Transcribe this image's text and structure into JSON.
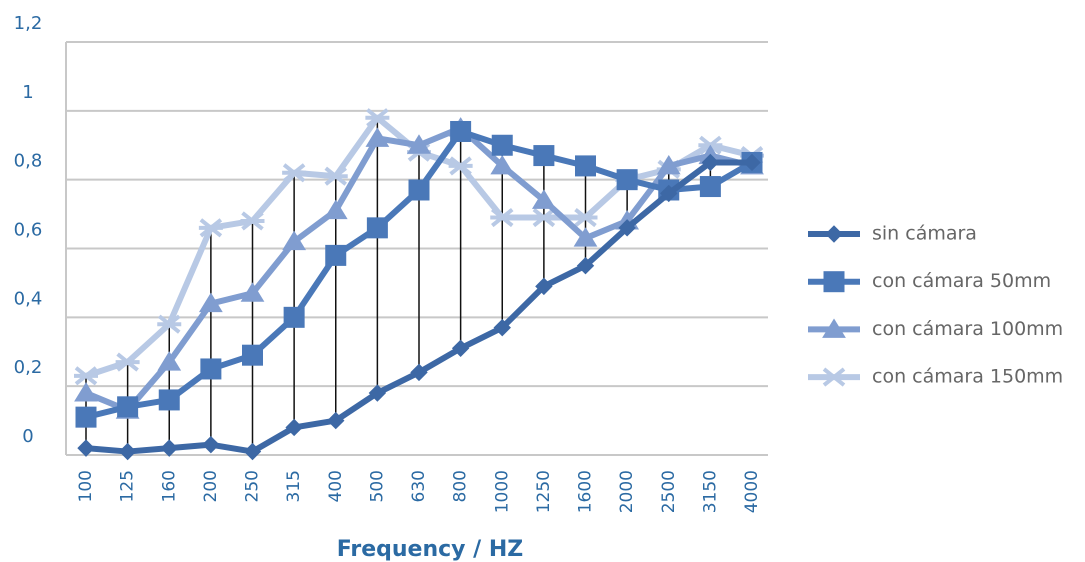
{
  "chart_data": {
    "type": "line",
    "x_label": "Frequency / HZ",
    "categories": [
      "100",
      "125",
      "160",
      "200",
      "250",
      "315",
      "400",
      "500",
      "630",
      "800",
      "1000",
      "1250",
      "1600",
      "2000",
      "2500",
      "3150",
      "4000"
    ],
    "series": [
      {
        "name": "sin cámara",
        "color": "#3d68a5",
        "marker": "diamond",
        "values": [
          0.02,
          0.01,
          0.02,
          0.03,
          0.01,
          0.08,
          0.1,
          0.18,
          0.24,
          0.31,
          0.37,
          0.49,
          0.55,
          0.66,
          0.76,
          0.85,
          0.85
        ]
      },
      {
        "name": "con cámara 50mm",
        "color": "#4a78b8",
        "marker": "square",
        "values": [
          0.11,
          0.14,
          0.16,
          0.25,
          0.29,
          0.4,
          0.58,
          0.66,
          0.77,
          0.94,
          0.9,
          0.87,
          0.84,
          0.8,
          0.77,
          0.78,
          0.85
        ]
      },
      {
        "name": "con cámara 100mm",
        "color": "#809dd0",
        "marker": "triangle",
        "values": [
          0.18,
          0.13,
          0.27,
          0.44,
          0.47,
          0.62,
          0.71,
          0.92,
          0.9,
          0.95,
          0.84,
          0.74,
          0.63,
          0.68,
          0.84,
          0.87,
          0.84
        ]
      },
      {
        "name": "con cámara 150mm",
        "color": "#b8c9e5",
        "marker": "star",
        "values": [
          0.23,
          0.27,
          0.38,
          0.66,
          0.68,
          0.82,
          0.81,
          0.98,
          0.88,
          0.84,
          0.69,
          0.69,
          0.69,
          0.8,
          0.83,
          0.9,
          0.87
        ]
      }
    ],
    "ylim": [
      0,
      1.2
    ],
    "yticks": [
      0,
      {
        "value": 0.2,
        "label": "0,2"
      },
      {
        "value": 0.4,
        "label": "0,4"
      },
      {
        "value": 0.6,
        "label": "0,6"
      },
      {
        "value": 0.8,
        "label": "0,8"
      },
      1,
      {
        "value": 1.2,
        "label": "1,2"
      }
    ],
    "grid": true,
    "high_low_lines": true,
    "legend": "right"
  }
}
